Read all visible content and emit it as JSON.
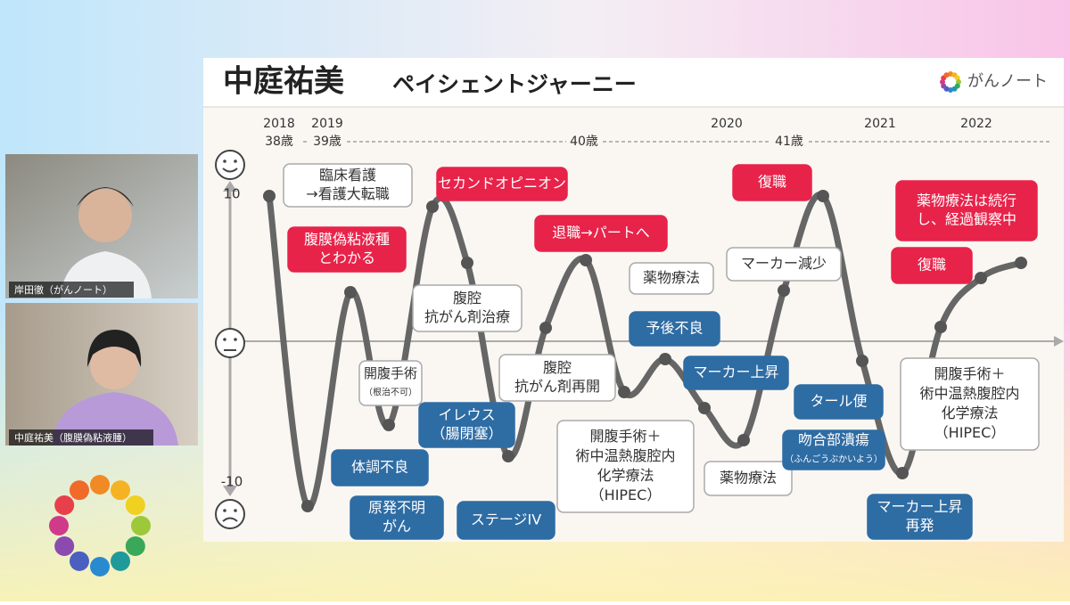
{
  "header": {
    "title": "中庭祐美",
    "subtitle": "ペイシェントジャーニー",
    "logo": "がんノート"
  },
  "participants": [
    {
      "name": "岸田徹（がんノート）"
    },
    {
      "name": "中庭祐美（腹膜偽粘液腫）"
    }
  ],
  "timeline": {
    "years": [
      "2018",
      "2019",
      "2020",
      "2021",
      "2022"
    ],
    "ages": [
      "38歳",
      "39歳",
      "40歳",
      "41歳"
    ]
  },
  "axis": {
    "top": "10",
    "bottom": "-10"
  },
  "callouts": [
    {
      "lines": [
        "臨床看護",
        "→看護大転職"
      ]
    },
    {
      "lines": [
        "腹膜偽粘液種",
        "とわかる"
      ]
    },
    {
      "lines": [
        "セカンドオピニオン"
      ]
    },
    {
      "lines": [
        "腹腔",
        "抗がん剤治療"
      ]
    },
    {
      "lines": [
        "開腹手術",
        "（根治不可）"
      ]
    },
    {
      "lines": [
        "イレウス",
        "（腸閉塞）"
      ]
    },
    {
      "lines": [
        "体調不良"
      ]
    },
    {
      "lines": [
        "原発不明",
        "がん"
      ]
    },
    {
      "lines": [
        "ステージIV"
      ]
    },
    {
      "lines": [
        "退職→パートへ"
      ]
    },
    {
      "lines": [
        "腹腔",
        "抗がん剤再開"
      ]
    },
    {
      "lines": [
        "開腹手術＋",
        "術中温熱腹腔内",
        "化学療法",
        "（HIPEC）"
      ]
    },
    {
      "lines": [
        "薬物療法"
      ]
    },
    {
      "lines": [
        "予後不良"
      ]
    },
    {
      "lines": [
        "マーカー上昇"
      ]
    },
    {
      "lines": [
        "マーカー減少"
      ]
    },
    {
      "lines": [
        "復職"
      ]
    },
    {
      "lines": [
        "薬物療法"
      ]
    },
    {
      "lines": [
        "タール便"
      ]
    },
    {
      "lines": [
        "吻合部潰瘍",
        "（ふんごうぶかいよう）"
      ]
    },
    {
      "lines": [
        "マーカー上昇",
        "再発"
      ]
    },
    {
      "lines": [
        "薬物療法は続行",
        "し、経過観察中"
      ]
    },
    {
      "lines": [
        "復職"
      ]
    },
    {
      "lines": [
        "開腹手術＋",
        "術中温熱腹腔内",
        "化学療法",
        "（HIPEC）"
      ]
    }
  ]
}
